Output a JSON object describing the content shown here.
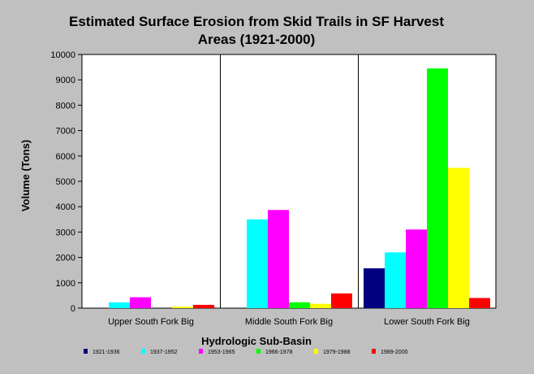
{
  "chart_data": {
    "type": "bar",
    "title": "Estimated Surface Erosion from Skid Trails in SF Harvest Areas (1921-2000)",
    "title_lines": [
      "Estimated Surface Erosion from Skid Trails in SF Harvest",
      "Areas (1921-2000)"
    ],
    "xlabel": "Hydrologic Sub-Basin",
    "ylabel": "Volume (Tons)",
    "ylim": [
      0,
      10000
    ],
    "yticks": [
      0,
      1000,
      2000,
      3000,
      4000,
      5000,
      6000,
      7000,
      8000,
      9000,
      10000
    ],
    "grid": false,
    "legend_position": "bottom",
    "categories": [
      "Upper South Fork Big",
      "Middle South Fork Big",
      "Lower South Fork Big"
    ],
    "series": [
      {
        "name": "1921-1936",
        "color": "#000080",
        "values": [
          0,
          0,
          1570
        ]
      },
      {
        "name": "1937-1952",
        "color": "#00ffff",
        "values": [
          230,
          3500,
          2200
        ]
      },
      {
        "name": "1953-1965",
        "color": "#ff00ff",
        "values": [
          430,
          3870,
          3100
        ]
      },
      {
        "name": "1966-1978",
        "color": "#00ff00",
        "values": [
          0,
          230,
          9450
        ]
      },
      {
        "name": "1979-1988",
        "color": "#ffff00",
        "values": [
          60,
          170,
          5530
        ]
      },
      {
        "name": "1989-2000",
        "color": "#ff0000",
        "values": [
          130,
          580,
          400
        ]
      }
    ]
  }
}
